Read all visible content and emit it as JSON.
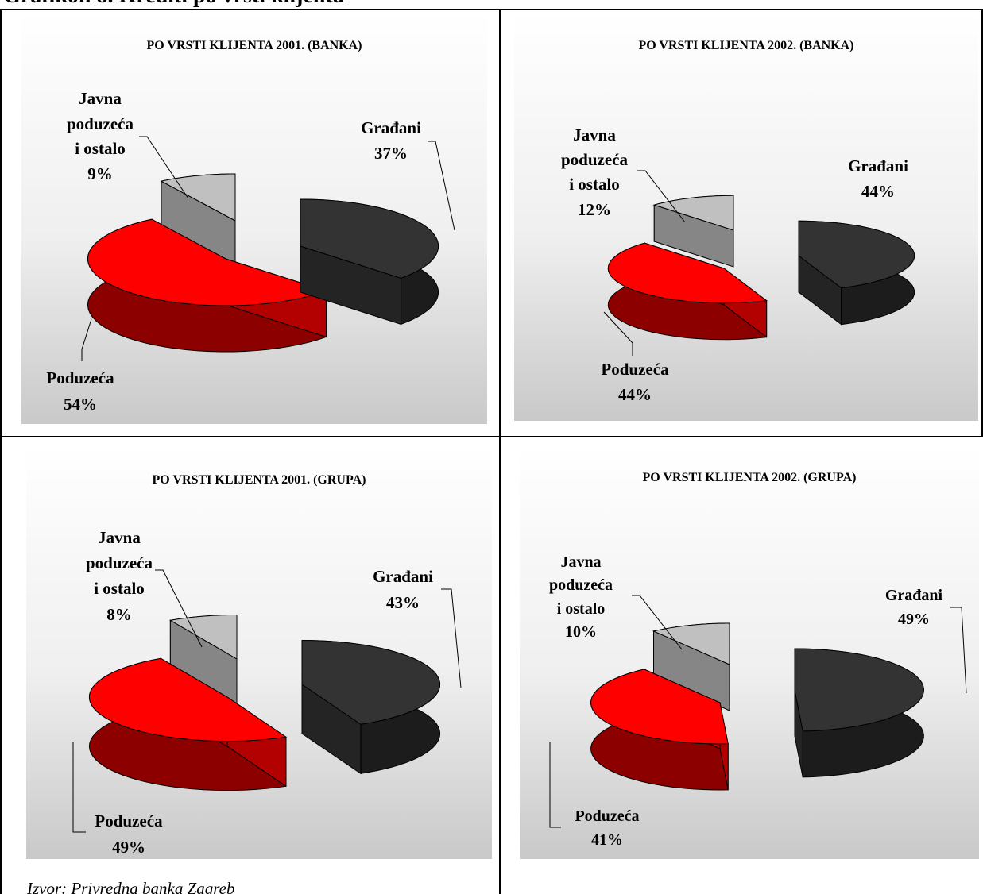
{
  "page": {
    "header": "Grafikon 8. Krediti po vrsti klijenta",
    "source": "Izvor: Privredna banka Zagreb"
  },
  "chart_data": [
    {
      "type": "pie",
      "title": "PO VRSTI KLIJENTA 2001. (BANKA)",
      "categories": [
        "Građani",
        "Poduzeća",
        "Javna poduzeća i ostalo"
      ],
      "values": [
        37,
        54,
        9
      ],
      "value_labels": [
        "37%",
        "54%",
        "9%"
      ],
      "colors": [
        "#333333",
        "#ff0000",
        "#c0c0c0"
      ],
      "style": "3d-exploded"
    },
    {
      "type": "pie",
      "title": "PO VRSTI KLIJENTA 2002.  (BANKA)",
      "categories": [
        "Građani",
        "Poduzeća",
        "Javna poduzeća i ostalo"
      ],
      "values": [
        44,
        44,
        12
      ],
      "value_labels": [
        "44%",
        "44%",
        "12%"
      ],
      "colors": [
        "#333333",
        "#ff0000",
        "#c0c0c0"
      ],
      "style": "3d-exploded"
    },
    {
      "type": "pie",
      "title": "PO VRSTI KLIJENTA 2001. (GRUPA)",
      "categories": [
        "Građani",
        "Poduzeća",
        "Javna poduzeća i ostalo"
      ],
      "values": [
        43,
        49,
        8
      ],
      "value_labels": [
        "43%",
        "49%",
        "8%"
      ],
      "colors": [
        "#333333",
        "#ff0000",
        "#c0c0c0"
      ],
      "style": "3d-exploded"
    },
    {
      "type": "pie",
      "title": "PO VRSTI KLIJENTA 2002. (GRUPA)",
      "categories": [
        "Građani",
        "Poduzeća",
        "Javna poduzeća i ostalo"
      ],
      "values": [
        49,
        41,
        10
      ],
      "value_labels": [
        "49%",
        "41%",
        "10%"
      ],
      "colors": [
        "#333333",
        "#ff0000",
        "#c0c0c0"
      ],
      "style": "3d-exploded"
    }
  ]
}
